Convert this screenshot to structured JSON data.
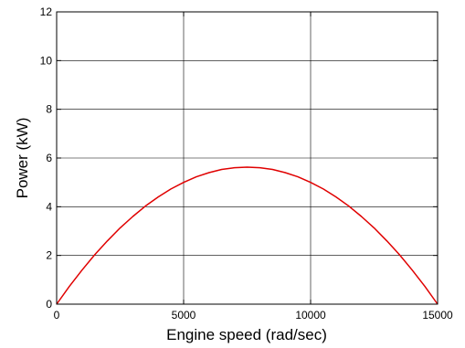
{
  "chart_data": {
    "type": "line",
    "title": "",
    "xlabel": "Engine speed (rad/sec)",
    "ylabel": "Power (kW)",
    "xlim": [
      0,
      15000
    ],
    "ylim": [
      0,
      12
    ],
    "xticks": [
      0,
      5000,
      10000,
      15000
    ],
    "xtick_labels": [
      "0",
      "5000",
      "10000",
      "15000"
    ],
    "yticks": [
      0,
      2,
      4,
      6,
      8,
      10,
      12
    ],
    "ytick_labels": [
      "0",
      "2",
      "4",
      "6",
      "8",
      "10",
      "12"
    ],
    "grid": true,
    "series": [
      {
        "color": "#e00000",
        "x": [
          0,
          500,
          1000,
          1500,
          2000,
          2500,
          3000,
          3500,
          4000,
          4500,
          5000,
          5500,
          6000,
          6500,
          7000,
          7500,
          8000,
          8500,
          9000,
          9500,
          10000,
          10500,
          11000,
          11500,
          12000,
          12500,
          13000,
          13500,
          14000,
          14500,
          15000
        ],
        "y": [
          0,
          0.73,
          1.4,
          2.03,
          2.6,
          3.13,
          3.6,
          4.03,
          4.4,
          4.73,
          5.0,
          5.23,
          5.4,
          5.53,
          5.6,
          5.625,
          5.6,
          5.53,
          5.4,
          5.23,
          5.0,
          4.73,
          4.4,
          4.03,
          3.6,
          3.13,
          2.6,
          2.03,
          1.4,
          0.73,
          0
        ]
      }
    ]
  }
}
